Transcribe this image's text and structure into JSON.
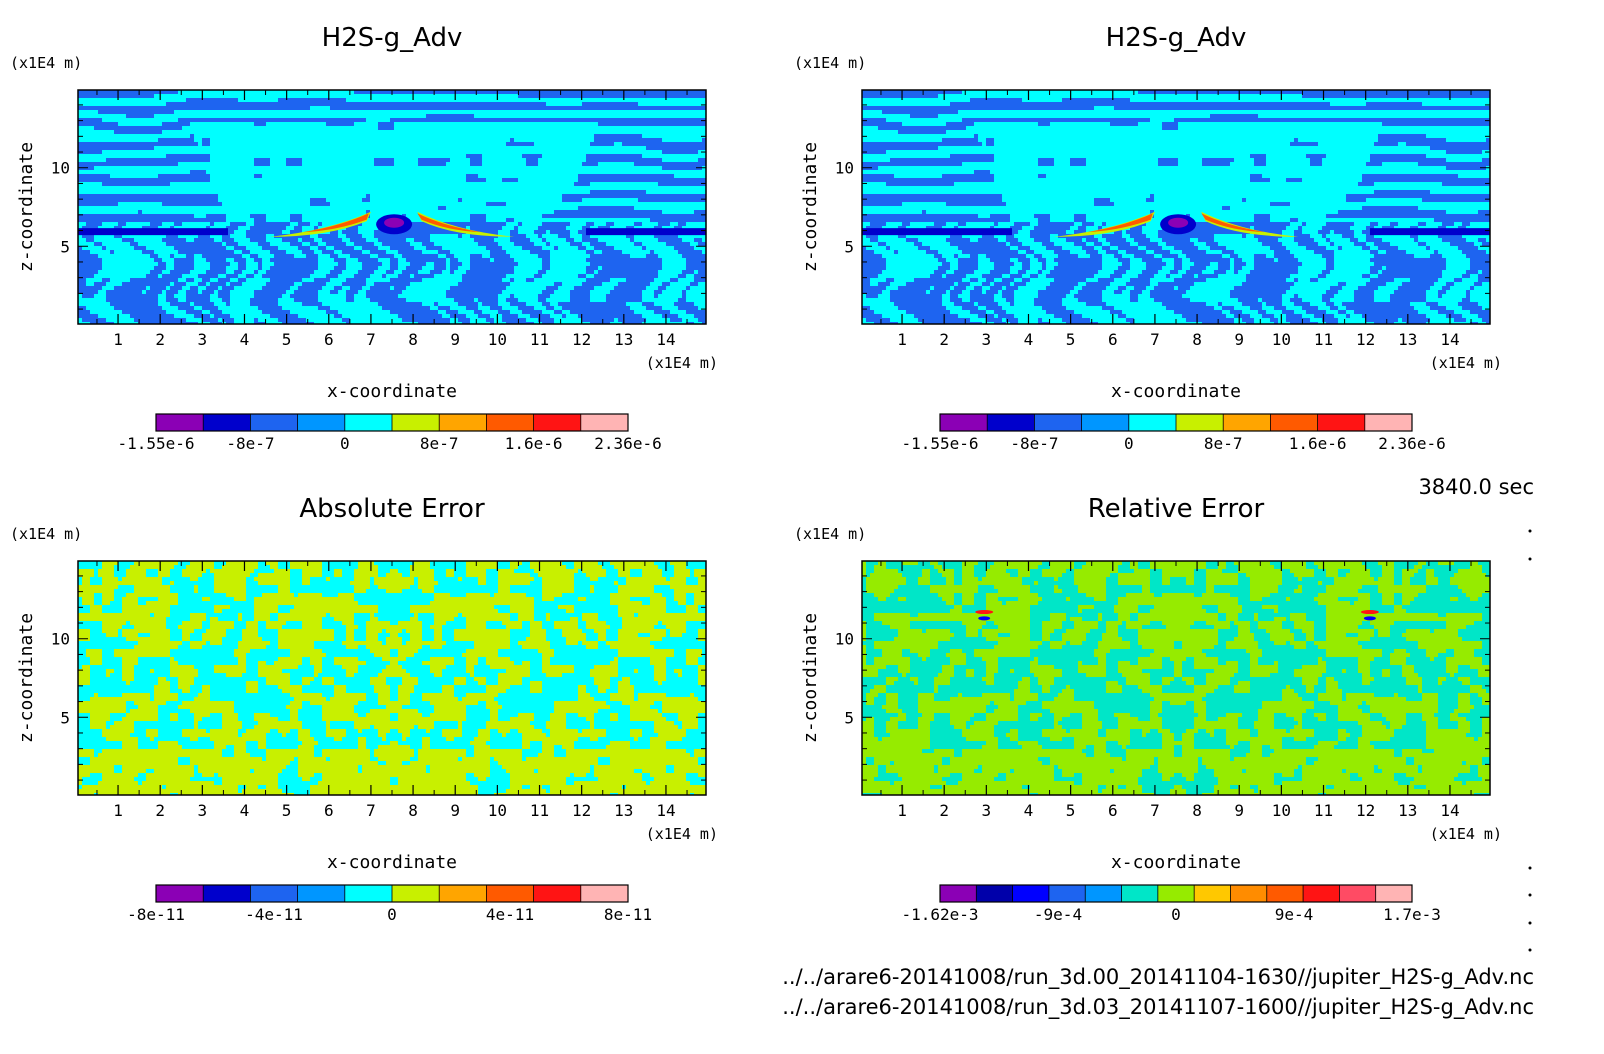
{
  "footer": {
    "time": "3840.0 sec",
    "file_1": "../../arare6-20141008/run_3d.00_20141104-1630//jupiter_H2S-g_Adv.nc",
    "file_2": "../../arare6-20141008/run_3d.03_20141107-1600//jupiter_H2S-g_Adv.nc"
  },
  "chart_data": [
    {
      "type": "heatmap",
      "title": "H2S-g_Adv",
      "xlabel": "x-coordinate",
      "ylabel": "z-coordinate",
      "x_unit": "(x1E4 m)",
      "z_unit": "(x1E4 m)",
      "xlim": [
        0.05,
        14.95
      ],
      "ylim": [
        0.05,
        14.95
      ],
      "x_ticks": [
        "1",
        "2",
        "3",
        "4",
        "5",
        "6",
        "7",
        "8",
        "9",
        "10",
        "11",
        "12",
        "13",
        "14"
      ],
      "y_ticks": [
        "5",
        "10"
      ],
      "colorbar_labels": [
        "-1.55e-6",
        "-8e-7",
        "0",
        "8e-7",
        "1.6e-6",
        "2.36e-6"
      ],
      "colorbar_colors": [
        "#8b00b5",
        "#0000cc",
        "#1e64f0",
        "#0096ff",
        "#00ffff",
        "#c8f000",
        "#ffa500",
        "#ff5a00",
        "#ff1414",
        "#ffb4b4"
      ],
      "pattern": "plume",
      "field_colors": [
        "#1e64f0",
        "#00ffff"
      ]
    },
    {
      "type": "heatmap",
      "title": "H2S-g_Adv",
      "xlabel": "x-coordinate",
      "ylabel": "z-coordinate",
      "x_unit": "(x1E4 m)",
      "z_unit": "(x1E4 m)",
      "xlim": [
        0.05,
        14.95
      ],
      "ylim": [
        0.05,
        14.95
      ],
      "x_ticks": [
        "1",
        "2",
        "3",
        "4",
        "5",
        "6",
        "7",
        "8",
        "9",
        "10",
        "11",
        "12",
        "13",
        "14"
      ],
      "y_ticks": [
        "5",
        "10"
      ],
      "colorbar_labels": [
        "-1.55e-6",
        "-8e-7",
        "0",
        "8e-7",
        "1.6e-6",
        "2.36e-6"
      ],
      "colorbar_colors": [
        "#8b00b5",
        "#0000cc",
        "#1e64f0",
        "#0096ff",
        "#00ffff",
        "#c8f000",
        "#ffa500",
        "#ff5a00",
        "#ff1414",
        "#ffb4b4"
      ],
      "pattern": "plume",
      "field_colors": [
        "#1e64f0",
        "#00ffff"
      ]
    },
    {
      "type": "heatmap",
      "title": "Absolute Error",
      "xlabel": "x-coordinate",
      "ylabel": "z-coordinate",
      "x_unit": "(x1E4 m)",
      "z_unit": "(x1E4 m)",
      "xlim": [
        0.05,
        14.95
      ],
      "ylim": [
        0.05,
        14.95
      ],
      "x_ticks": [
        "1",
        "2",
        "3",
        "4",
        "5",
        "6",
        "7",
        "8",
        "9",
        "10",
        "11",
        "12",
        "13",
        "14"
      ],
      "y_ticks": [
        "5",
        "10"
      ],
      "colorbar_labels": [
        "-8e-11",
        "-4e-11",
        "0",
        "4e-11",
        "8e-11"
      ],
      "colorbar_colors": [
        "#8b00b5",
        "#0000cc",
        "#1e64f0",
        "#0096ff",
        "#00ffff",
        "#c8f000",
        "#ffa500",
        "#ff5a00",
        "#ff1414",
        "#ffb4b4"
      ],
      "pattern": "noise",
      "field_colors": [
        "#c8f000",
        "#00ffff"
      ]
    },
    {
      "type": "heatmap",
      "title": "Relative Error",
      "xlabel": "x-coordinate",
      "ylabel": "z-coordinate",
      "x_unit": "(x1E4 m)",
      "z_unit": "(x1E4 m)",
      "xlim": [
        0.05,
        14.95
      ],
      "ylim": [
        0.05,
        14.95
      ],
      "x_ticks": [
        "1",
        "2",
        "3",
        "4",
        "5",
        "6",
        "7",
        "8",
        "9",
        "10",
        "11",
        "12",
        "13",
        "14"
      ],
      "y_ticks": [
        "5",
        "10"
      ],
      "colorbar_labels": [
        "-1.62e-3",
        "-9e-4",
        "0",
        "9e-4",
        "1.7e-3"
      ],
      "colorbar_colors": [
        "#8b00b5",
        "#0000aa",
        "#0000ff",
        "#1e64f0",
        "#0096ff",
        "#00e6c8",
        "#96eb00",
        "#ffc800",
        "#ff8c00",
        "#ff5a00",
        "#ff1414",
        "#ff4b64",
        "#ffb4b4"
      ],
      "pattern": "noise",
      "field_colors": [
        "#96eb00",
        "#00e6c8"
      ]
    }
  ]
}
